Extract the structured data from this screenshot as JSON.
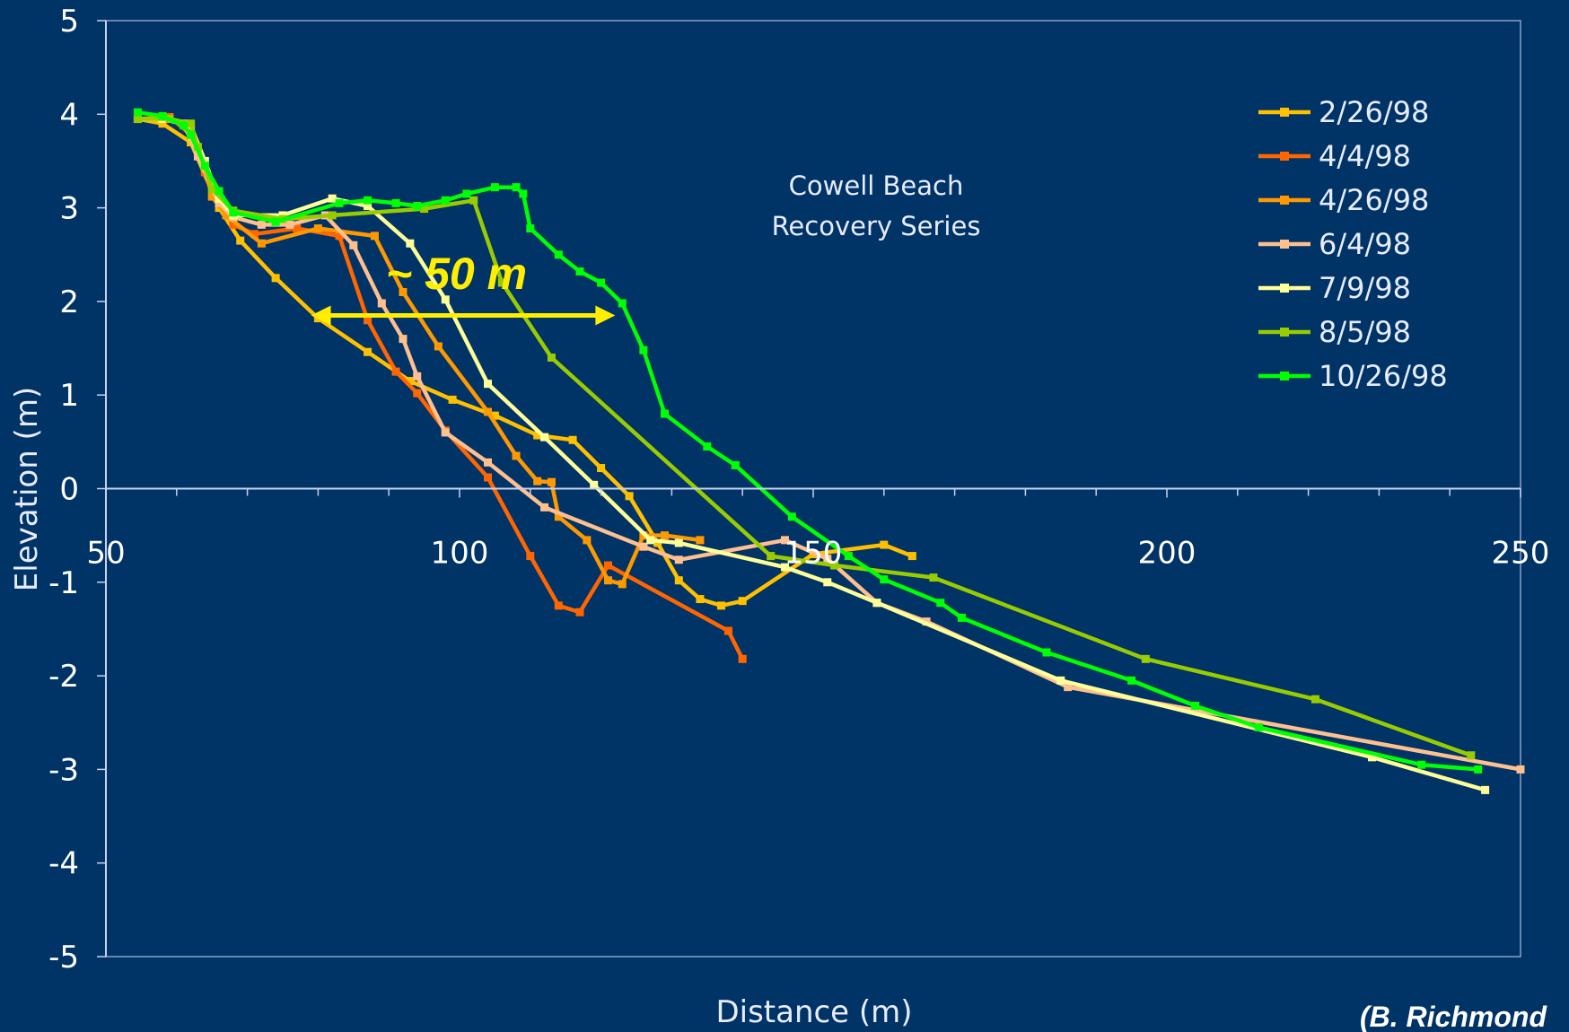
{
  "chart_data": {
    "type": "line",
    "title_lines": [
      "Cowell Beach",
      "Recovery Series"
    ],
    "xlabel": "Distance (m)",
    "ylabel": "Elevation (m)",
    "xlim": [
      50,
      250
    ],
    "ylim": [
      -5,
      5
    ],
    "x_ticks": [
      50,
      100,
      150,
      200,
      250
    ],
    "y_ticks": [
      5,
      4,
      3,
      2,
      1,
      0,
      -1,
      -2,
      -3,
      -4,
      -5
    ],
    "legend_position": "top-right",
    "annotation": {
      "text": "~ 50 m",
      "arrow_from": [
        79,
        1.85
      ],
      "arrow_to": [
        122,
        1.85
      ],
      "color": "#FFEE00"
    },
    "credit": "(B. Richmond",
    "series": [
      {
        "name": "2/26/98",
        "color": "#FFC000",
        "points": [
          [
            54.5,
            3.95
          ],
          [
            58,
            3.9
          ],
          [
            62,
            3.7
          ],
          [
            66,
            3.0
          ],
          [
            69,
            2.65
          ],
          [
            74,
            2.25
          ],
          [
            80,
            1.82
          ],
          [
            87,
            1.46
          ],
          [
            93,
            1.15
          ],
          [
            99,
            0.95
          ],
          [
            105,
            0.78
          ],
          [
            111,
            0.57
          ],
          [
            116,
            0.52
          ],
          [
            120,
            0.22
          ],
          [
            124,
            -0.08
          ],
          [
            128,
            -0.58
          ],
          [
            131,
            -0.98
          ],
          [
            134,
            -1.18
          ],
          [
            137,
            -1.25
          ],
          [
            140,
            -1.2
          ],
          [
            150,
            -0.7
          ],
          [
            160,
            -0.6
          ],
          [
            164,
            -0.72
          ]
        ]
      },
      {
        "name": "4/4/98",
        "color": "#FF6600",
        "points": [
          [
            54.5,
            3.95
          ],
          [
            59,
            3.97
          ],
          [
            62,
            3.78
          ],
          [
            64,
            3.38
          ],
          [
            66,
            3.1
          ],
          [
            68,
            2.82
          ],
          [
            71,
            2.72
          ],
          [
            77,
            2.78
          ],
          [
            83,
            2.7
          ],
          [
            87,
            1.8
          ],
          [
            91,
            1.25
          ],
          [
            94,
            1.02
          ],
          [
            98,
            0.62
          ],
          [
            104,
            0.12
          ],
          [
            110,
            -0.72
          ],
          [
            114,
            -1.25
          ],
          [
            117,
            -1.32
          ],
          [
            121,
            -0.82
          ],
          [
            138,
            -1.52
          ],
          [
            140,
            -1.82
          ]
        ]
      },
      {
        "name": "4/26/98",
        "color": "#FF9900",
        "points": [
          [
            54.5,
            3.95
          ],
          [
            58,
            3.95
          ],
          [
            62,
            3.88
          ],
          [
            64,
            3.42
          ],
          [
            65,
            3.12
          ],
          [
            67,
            2.92
          ],
          [
            72,
            2.62
          ],
          [
            80,
            2.78
          ],
          [
            88,
            2.7
          ],
          [
            92,
            2.1
          ],
          [
            97,
            1.52
          ],
          [
            104,
            0.82
          ],
          [
            108,
            0.35
          ],
          [
            111,
            0.08
          ],
          [
            113,
            0.07
          ],
          [
            114,
            -0.3
          ],
          [
            118,
            -0.55
          ],
          [
            121,
            -0.98
          ],
          [
            123,
            -1.02
          ],
          [
            126,
            -0.5
          ],
          [
            129,
            -0.5
          ],
          [
            134,
            -0.55
          ]
        ]
      },
      {
        "name": "6/4/98",
        "color": "#FFC090",
        "points": [
          [
            54.5,
            3.95
          ],
          [
            58,
            3.95
          ],
          [
            61,
            3.9
          ],
          [
            63,
            3.55
          ],
          [
            66,
            3.05
          ],
          [
            68,
            2.9
          ],
          [
            72,
            2.82
          ],
          [
            76,
            2.82
          ],
          [
            81,
            2.92
          ],
          [
            85,
            2.6
          ],
          [
            89,
            1.98
          ],
          [
            92,
            1.6
          ],
          [
            94,
            1.2
          ],
          [
            98,
            0.6
          ],
          [
            104,
            0.28
          ],
          [
            112,
            -0.2
          ],
          [
            126,
            -0.62
          ],
          [
            131,
            -0.76
          ],
          [
            146,
            -0.55
          ],
          [
            152,
            -0.75
          ],
          [
            159,
            -1.22
          ],
          [
            166,
            -1.42
          ],
          [
            186,
            -2.12
          ],
          [
            250,
            -3.0
          ]
        ]
      },
      {
        "name": "7/9/98",
        "color": "#FFFF99",
        "points": [
          [
            54.5,
            3.95
          ],
          [
            58,
            3.95
          ],
          [
            62,
            3.88
          ],
          [
            64,
            3.5
          ],
          [
            66,
            3.1
          ],
          [
            68,
            2.92
          ],
          [
            75,
            2.92
          ],
          [
            82,
            3.1
          ],
          [
            87,
            3.02
          ],
          [
            93,
            2.62
          ],
          [
            98,
            2.02
          ],
          [
            104,
            1.12
          ],
          [
            112,
            0.55
          ],
          [
            119,
            0.04
          ],
          [
            127,
            -0.55
          ],
          [
            131,
            -0.58
          ],
          [
            146,
            -0.84
          ],
          [
            152,
            -1.0
          ],
          [
            159,
            -1.22
          ],
          [
            185,
            -2.05
          ],
          [
            229,
            -2.87
          ],
          [
            245,
            -3.22
          ]
        ]
      },
      {
        "name": "8/5/98",
        "color": "#99CC00",
        "points": [
          [
            54.5,
            3.95
          ],
          [
            59,
            3.95
          ],
          [
            62,
            3.9
          ],
          [
            63,
            3.65
          ],
          [
            65,
            3.2
          ],
          [
            68,
            2.97
          ],
          [
            75,
            2.88
          ],
          [
            82,
            2.92
          ],
          [
            95,
            2.99
          ],
          [
            102,
            3.08
          ],
          [
            106,
            2.2
          ],
          [
            113,
            1.4
          ],
          [
            144,
            -0.72
          ],
          [
            153,
            -0.82
          ],
          [
            167,
            -0.95
          ],
          [
            197,
            -1.82
          ],
          [
            221,
            -2.25
          ],
          [
            243,
            -2.85
          ]
        ]
      },
      {
        "name": "10/26/98",
        "color": "#00FF00",
        "points": [
          [
            54.5,
            4.02
          ],
          [
            58,
            3.98
          ],
          [
            61,
            3.88
          ],
          [
            62,
            3.78
          ],
          [
            64,
            3.45
          ],
          [
            66,
            3.18
          ],
          [
            68,
            2.95
          ],
          [
            74,
            2.85
          ],
          [
            83,
            3.05
          ],
          [
            87,
            3.08
          ],
          [
            91,
            3.05
          ],
          [
            94,
            3.02
          ],
          [
            98,
            3.08
          ],
          [
            101,
            3.15
          ],
          [
            105,
            3.22
          ],
          [
            108,
            3.22
          ],
          [
            109,
            3.15
          ],
          [
            110,
            2.78
          ],
          [
            114,
            2.5
          ],
          [
            117,
            2.32
          ],
          [
            120,
            2.2
          ],
          [
            123,
            1.98
          ],
          [
            126,
            1.48
          ],
          [
            129,
            0.8
          ],
          [
            135,
            0.45
          ],
          [
            139,
            0.25
          ],
          [
            147,
            -0.3
          ],
          [
            155,
            -0.72
          ],
          [
            160,
            -0.97
          ],
          [
            168,
            -1.22
          ],
          [
            171,
            -1.38
          ],
          [
            183,
            -1.75
          ],
          [
            195,
            -2.05
          ],
          [
            204,
            -2.32
          ],
          [
            213,
            -2.55
          ],
          [
            236,
            -2.95
          ],
          [
            244,
            -3.0
          ]
        ]
      }
    ]
  }
}
